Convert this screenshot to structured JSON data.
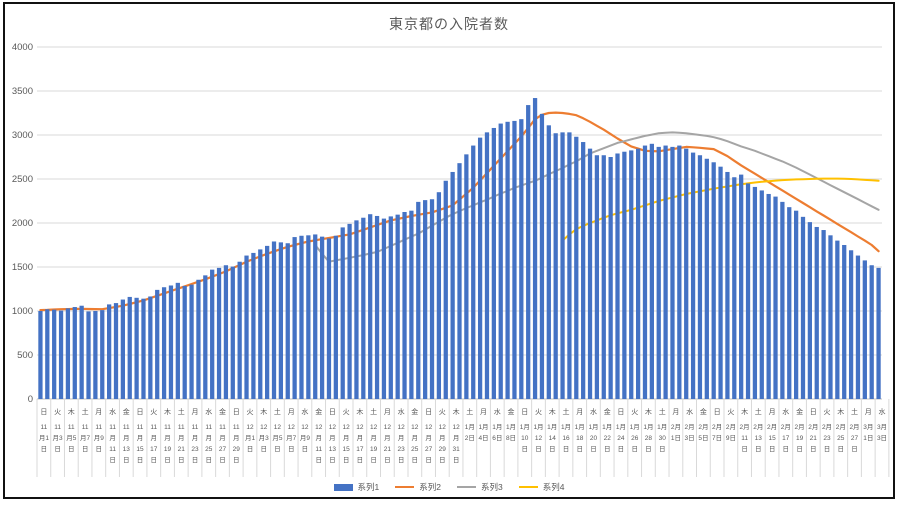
{
  "chart_data": {
    "type": "bar+line combo",
    "title": "東京都の入院者数",
    "ylabel": "",
    "xlabel": "",
    "ylim": [
      0,
      4000
    ],
    "yticks": [
      0,
      500,
      1000,
      1500,
      2000,
      2500,
      3000,
      3500,
      4000
    ],
    "grid": "horizontal",
    "legend_position": "bottom",
    "x_axis_note": "daily categories from 11月1日 to 3月3日, tick labels every 2 days with weekday",
    "x_labels": [
      {
        "w": "日",
        "m": 11,
        "d": 1
      },
      {
        "w": "火",
        "m": 11,
        "d": 3
      },
      {
        "w": "木",
        "m": 11,
        "d": 5
      },
      {
        "w": "土",
        "m": 11,
        "d": 7
      },
      {
        "w": "月",
        "m": 11,
        "d": 9
      },
      {
        "w": "水",
        "m": 11,
        "d": 11
      },
      {
        "w": "金",
        "m": 11,
        "d": 13
      },
      {
        "w": "日",
        "m": 11,
        "d": 15
      },
      {
        "w": "火",
        "m": 11,
        "d": 17
      },
      {
        "w": "木",
        "m": 11,
        "d": 19
      },
      {
        "w": "土",
        "m": 11,
        "d": 21
      },
      {
        "w": "月",
        "m": 11,
        "d": 23
      },
      {
        "w": "水",
        "m": 11,
        "d": 25
      },
      {
        "w": "金",
        "m": 11,
        "d": 27
      },
      {
        "w": "日",
        "m": 11,
        "d": 29
      },
      {
        "w": "火",
        "m": 12,
        "d": 1
      },
      {
        "w": "木",
        "m": 12,
        "d": 3
      },
      {
        "w": "土",
        "m": 12,
        "d": 5
      },
      {
        "w": "月",
        "m": 12,
        "d": 7
      },
      {
        "w": "水",
        "m": 12,
        "d": 9
      },
      {
        "w": "金",
        "m": 12,
        "d": 11
      },
      {
        "w": "日",
        "m": 12,
        "d": 13
      },
      {
        "w": "火",
        "m": 12,
        "d": 15
      },
      {
        "w": "木",
        "m": 12,
        "d": 17
      },
      {
        "w": "土",
        "m": 12,
        "d": 19
      },
      {
        "w": "月",
        "m": 12,
        "d": 21
      },
      {
        "w": "水",
        "m": 12,
        "d": 23
      },
      {
        "w": "金",
        "m": 12,
        "d": 25
      },
      {
        "w": "日",
        "m": 12,
        "d": 27
      },
      {
        "w": "火",
        "m": 12,
        "d": 29
      },
      {
        "w": "木",
        "m": 12,
        "d": 31
      },
      {
        "w": "土",
        "m": 1,
        "d": 2
      },
      {
        "w": "月",
        "m": 1,
        "d": 4
      },
      {
        "w": "水",
        "m": 1,
        "d": 6
      },
      {
        "w": "金",
        "m": 1,
        "d": 8
      },
      {
        "w": "日",
        "m": 1,
        "d": 10
      },
      {
        "w": "火",
        "m": 1,
        "d": 12
      },
      {
        "w": "木",
        "m": 1,
        "d": 14
      },
      {
        "w": "土",
        "m": 1,
        "d": 16
      },
      {
        "w": "月",
        "m": 1,
        "d": 18
      },
      {
        "w": "水",
        "m": 1,
        "d": 20
      },
      {
        "w": "金",
        "m": 1,
        "d": 22
      },
      {
        "w": "日",
        "m": 1,
        "d": 24
      },
      {
        "w": "火",
        "m": 1,
        "d": 26
      },
      {
        "w": "木",
        "m": 1,
        "d": 28
      },
      {
        "w": "土",
        "m": 1,
        "d": 30
      },
      {
        "w": "月",
        "m": 2,
        "d": 1
      },
      {
        "w": "水",
        "m": 2,
        "d": 3
      },
      {
        "w": "金",
        "m": 2,
        "d": 5
      },
      {
        "w": "日",
        "m": 2,
        "d": 7
      },
      {
        "w": "火",
        "m": 2,
        "d": 9
      },
      {
        "w": "木",
        "m": 2,
        "d": 11
      },
      {
        "w": "土",
        "m": 2,
        "d": 13
      },
      {
        "w": "月",
        "m": 2,
        "d": 15
      },
      {
        "w": "水",
        "m": 2,
        "d": 17
      },
      {
        "w": "金",
        "m": 2,
        "d": 19
      },
      {
        "w": "日",
        "m": 2,
        "d": 21
      },
      {
        "w": "火",
        "m": 2,
        "d": 23
      },
      {
        "w": "木",
        "m": 2,
        "d": 25
      },
      {
        "w": "土",
        "m": 2,
        "d": 27
      },
      {
        "w": "月",
        "m": 3,
        "d": 1
      },
      {
        "w": "水",
        "m": 3,
        "d": 3
      }
    ],
    "series": [
      {
        "name": "系列1",
        "type": "bar",
        "color": "#4472C4",
        "start_day_index": 0,
        "values": [
          1000,
          1020,
          1015,
          1005,
          1030,
          1045,
          1060,
          995,
          1000,
          1010,
          1075,
          1090,
          1130,
          1160,
          1150,
          1140,
          1165,
          1240,
          1270,
          1290,
          1320,
          1285,
          1300,
          1355,
          1405,
          1470,
          1490,
          1520,
          1505,
          1560,
          1630,
          1660,
          1700,
          1740,
          1790,
          1780,
          1770,
          1840,
          1855,
          1860,
          1870,
          1845,
          1825,
          1855,
          1950,
          1990,
          2030,
          2060,
          2100,
          2080,
          2050,
          2075,
          2095,
          2125,
          2140,
          2240,
          2260,
          2270,
          2350,
          2480,
          2580,
          2680,
          2780,
          2880,
          2970,
          3030,
          3080,
          3130,
          3150,
          3160,
          3180,
          3340,
          3420,
          3240,
          3110,
          3020,
          3030,
          3030,
          2980,
          2920,
          2845,
          2770,
          2770,
          2750,
          2790,
          2810,
          2825,
          2845,
          2880,
          2900,
          2865,
          2880,
          2865,
          2880,
          2845,
          2800,
          2770,
          2730,
          2690,
          2640,
          2580,
          2520,
          2550,
          2450,
          2410,
          2370,
          2330,
          2300,
          2240,
          2180,
          2140,
          2070,
          2010,
          1955,
          1920,
          1860,
          1800,
          1750,
          1690,
          1630,
          1575,
          1520,
          1490
        ]
      },
      {
        "name": "系列2",
        "type": "line",
        "color": "#ED7D31",
        "start_day_index": 0,
        "values": [
          1010,
          1013,
          1017,
          1020,
          1022,
          1024,
          1025,
          1023,
          1022,
          1020,
          1033,
          1047,
          1060,
          1080,
          1100,
          1120,
          1147,
          1173,
          1200,
          1227,
          1253,
          1280,
          1307,
          1333,
          1360,
          1390,
          1420,
          1450,
          1487,
          1523,
          1560,
          1590,
          1620,
          1650,
          1677,
          1703,
          1730,
          1750,
          1770,
          1790,
          1803,
          1817,
          1830,
          1843,
          1857,
          1870,
          1897,
          1923,
          1950,
          1977,
          2003,
          2030,
          2047,
          2063,
          2080,
          2093,
          2107,
          2120,
          2147,
          2173,
          2200,
          2267,
          2333,
          2400,
          2483,
          2567,
          2650,
          2733,
          2817,
          2900,
          2983,
          3080,
          3180,
          3230,
          3250,
          3255,
          3250,
          3240,
          3225,
          3190,
          3150,
          3105,
          3060,
          3010,
          2960,
          2915,
          2870,
          2845,
          2820,
          2817,
          2815,
          2827,
          2840,
          2852,
          2865,
          2860,
          2855,
          2847,
          2840,
          2800,
          2760,
          2707,
          2655,
          2607,
          2560,
          2512,
          2465,
          2417,
          2370,
          2322,
          2275,
          2227,
          2180,
          2132,
          2085,
          2037,
          1990,
          1942,
          1895,
          1847,
          1800,
          1750,
          1680
        ]
      },
      {
        "name": "系列3",
        "type": "line",
        "color": "#A5A5A5",
        "start_day_index": 40,
        "values": [
          1750,
          1650,
          1560,
          1575,
          1590,
          1605,
          1620,
          1635,
          1655,
          1670,
          1705,
          1740,
          1775,
          1810,
          1845,
          1880,
          1925,
          1970,
          2015,
          2060,
          2100,
          2135,
          2170,
          2200,
          2235,
          2265,
          2300,
          2335,
          2365,
          2400,
          2425,
          2455,
          2480,
          2515,
          2555,
          2590,
          2625,
          2665,
          2700,
          2745,
          2790,
          2820,
          2850,
          2880,
          2910,
          2930,
          2950,
          2970,
          2990,
          3005,
          3020,
          3025,
          3030,
          3025,
          3020,
          3010,
          3000,
          2990,
          2975,
          2955,
          2930,
          2900,
          2870,
          2845,
          2820,
          2790,
          2760,
          2730,
          2700,
          2665,
          2630,
          2590,
          2550,
          2510,
          2470,
          2430,
          2390,
          2350,
          2310,
          2270,
          2230,
          2190,
          2150
        ]
      },
      {
        "name": "系列4",
        "type": "line",
        "color": "#FFC000",
        "start_day_index": 76,
        "values": [
          1800,
          1870,
          1930,
          1967,
          2000,
          2030,
          2060,
          2087,
          2110,
          2130,
          2150,
          2175,
          2200,
          2225,
          2250,
          2270,
          2290,
          2310,
          2330,
          2345,
          2360,
          2375,
          2390,
          2403,
          2415,
          2428,
          2440,
          2450,
          2460,
          2468,
          2475,
          2482,
          2488,
          2492,
          2495,
          2498,
          2500,
          2502,
          2505,
          2505,
          2505,
          2503,
          2500,
          2495,
          2490,
          2485,
          2480
        ]
      }
    ]
  },
  "style": {
    "axis_label_color": "#595959",
    "gridline_color": "#D9D9D9",
    "axis_line_color": "#BFBFBF",
    "title_color": "#595959",
    "frame_border_color": "#111111"
  }
}
